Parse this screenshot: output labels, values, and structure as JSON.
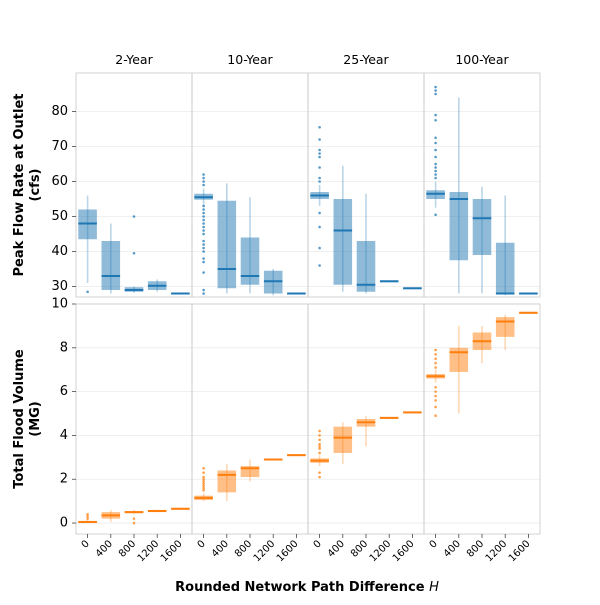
{
  "chart_data": {
    "type": "boxplot",
    "xlabel_prefix": "Rounded Network Path Difference ",
    "xlabel_var": "H",
    "columns": [
      "2-Year",
      "10-Year",
      "25-Year",
      "100-Year"
    ],
    "categories": [
      "0",
      "400",
      "800",
      "1200",
      "1600"
    ],
    "rows": [
      {
        "name": "peak_flow",
        "ylabel_line1": "Peak Flow Rate at Outlet",
        "ylabel_line2": "(cfs)",
        "ylim": [
          27,
          91
        ],
        "yticks": [
          30,
          40,
          50,
          60,
          70,
          80
        ],
        "color": "#1f77b4",
        "box_fill": "#1f77b4",
        "data": [
          [
            {
              "q1": 43.5,
              "median": 48,
              "q3": 52,
              "low": 31,
              "high": 56,
              "outliers": [
                28.5
              ]
            },
            {
              "q1": 29,
              "median": 33,
              "q3": 43,
              "low": 28,
              "high": 48,
              "outliers": []
            },
            {
              "q1": 28.5,
              "median": 29,
              "q3": 29.8,
              "low": 28.2,
              "high": 30,
              "outliers": [
                39.5,
                50
              ]
            },
            {
              "q1": 29,
              "median": 30.2,
              "q3": 31.5,
              "low": 28.5,
              "high": 32,
              "outliers": []
            },
            {
              "q1": 28,
              "median": 28,
              "q3": 28,
              "low": 28,
              "high": 28,
              "outliers": []
            }
          ],
          [
            {
              "q1": 54.8,
              "median": 55.5,
              "q3": 56.5,
              "low": 53,
              "high": 58,
              "outliers": [
                28,
                29,
                34,
                37,
                38,
                40,
                41,
                42,
                43,
                45,
                46,
                47,
                48,
                49,
                50,
                51,
                52,
                53,
                59,
                60,
                61,
                62
              ]
            },
            {
              "q1": 29.5,
              "median": 35,
              "q3": 54.5,
              "low": 28,
              "high": 59.5,
              "outliers": []
            },
            {
              "q1": 30.5,
              "median": 33,
              "q3": 44,
              "low": 28,
              "high": 55.5,
              "outliers": []
            },
            {
              "q1": 28,
              "median": 31.5,
              "q3": 34.5,
              "low": 27.5,
              "high": 35,
              "outliers": []
            },
            {
              "q1": 28,
              "median": 28,
              "q3": 28,
              "low": 28,
              "high": 28,
              "outliers": []
            }
          ],
          [
            {
              "q1": 55,
              "median": 56,
              "q3": 57,
              "low": 53,
              "high": 59,
              "outliers": [
                36,
                41,
                47,
                51,
                60,
                61,
                64,
                67,
                68,
                69,
                72,
                75.5
              ]
            },
            {
              "q1": 30.5,
              "median": 46,
              "q3": 55,
              "low": 28.5,
              "high": 64.5,
              "outliers": []
            },
            {
              "q1": 28.5,
              "median": 30.5,
              "q3": 43,
              "low": 28,
              "high": 56.5,
              "outliers": []
            },
            {
              "q1": 31.5,
              "median": 31.5,
              "q3": 31.5,
              "low": 31.5,
              "high": 31.5,
              "outliers": []
            },
            {
              "q1": 29.5,
              "median": 29.5,
              "q3": 29.5,
              "low": 29.5,
              "high": 29.5,
              "outliers": []
            }
          ],
          [
            {
              "q1": 55,
              "median": 56.5,
              "q3": 57.5,
              "low": 52.5,
              "high": 60,
              "outliers": [
                50.5,
                61,
                62,
                63,
                64,
                65,
                67,
                69,
                71,
                72.5,
                77.5,
                79,
                85,
                86,
                87
              ]
            },
            {
              "q1": 37.5,
              "median": 55,
              "q3": 57,
              "low": 28,
              "high": 84,
              "outliers": []
            },
            {
              "q1": 39,
              "median": 49.5,
              "q3": 55,
              "low": 28,
              "high": 58.5,
              "outliers": []
            },
            {
              "q1": 28,
              "median": 28,
              "q3": 42.5,
              "low": 27.5,
              "high": 56,
              "outliers": []
            },
            {
              "q1": 28,
              "median": 28,
              "q3": 28,
              "low": 28,
              "high": 28,
              "outliers": []
            }
          ]
        ]
      },
      {
        "name": "flood_volume",
        "ylabel_line1": "Total Flood Volume",
        "ylabel_line2": "(MG)",
        "ylim": [
          -0.5,
          10.0
        ],
        "yticks": [
          0,
          2,
          4,
          6,
          8,
          10
        ],
        "color": "#ff7f0e",
        "box_fill": "#ff7f0e",
        "data": [
          [
            {
              "q1": 0.0,
              "median": 0.05,
              "q3": 0.1,
              "low": 0.0,
              "high": 0.15,
              "outliers": [
                0.2,
                0.3,
                0.4
              ]
            },
            {
              "q1": 0.2,
              "median": 0.35,
              "q3": 0.5,
              "low": 0.05,
              "high": 0.6,
              "outliers": []
            },
            {
              "q1": 0.45,
              "median": 0.5,
              "q3": 0.55,
              "low": 0.4,
              "high": 0.6,
              "outliers": [
                0.0,
                0.2
              ]
            },
            {
              "q1": 0.5,
              "median": 0.55,
              "q3": 0.6,
              "low": 0.5,
              "high": 0.6,
              "outliers": []
            },
            {
              "q1": 0.65,
              "median": 0.65,
              "q3": 0.65,
              "low": 0.65,
              "high": 0.65,
              "outliers": []
            }
          ],
          [
            {
              "q1": 1.05,
              "median": 1.15,
              "q3": 1.25,
              "low": 1.0,
              "high": 1.35,
              "outliers": [
                1.5,
                1.6,
                1.7,
                1.8,
                1.9,
                2.0,
                2.1,
                2.3,
                2.5
              ]
            },
            {
              "q1": 1.4,
              "median": 2.2,
              "q3": 2.4,
              "low": 1.0,
              "high": 2.7,
              "outliers": []
            },
            {
              "q1": 2.1,
              "median": 2.5,
              "q3": 2.6,
              "low": 1.9,
              "high": 2.9,
              "outliers": []
            },
            {
              "q1": 2.9,
              "median": 2.9,
              "q3": 2.9,
              "low": 2.9,
              "high": 2.9,
              "outliers": []
            },
            {
              "q1": 3.1,
              "median": 3.1,
              "q3": 3.1,
              "low": 3.1,
              "high": 3.1,
              "outliers": []
            }
          ],
          [
            {
              "q1": 2.75,
              "median": 2.85,
              "q3": 2.95,
              "low": 2.6,
              "high": 3.1,
              "outliers": [
                2.1,
                2.3,
                3.2,
                3.4,
                3.5,
                3.6,
                3.8,
                4.0,
                4.2
              ]
            },
            {
              "q1": 3.2,
              "median": 3.9,
              "q3": 4.4,
              "low": 2.7,
              "high": 4.6,
              "outliers": []
            },
            {
              "q1": 4.4,
              "median": 4.6,
              "q3": 4.75,
              "low": 3.5,
              "high": 4.9,
              "outliers": []
            },
            {
              "q1": 4.8,
              "median": 4.8,
              "q3": 4.8,
              "low": 4.8,
              "high": 4.8,
              "outliers": []
            },
            {
              "q1": 5.05,
              "median": 5.05,
              "q3": 5.05,
              "low": 5.05,
              "high": 5.05,
              "outliers": []
            }
          ],
          [
            {
              "q1": 6.6,
              "median": 6.7,
              "q3": 6.8,
              "low": 6.4,
              "high": 7.0,
              "outliers": [
                4.9,
                5.3,
                5.6,
                5.8,
                6.0,
                6.2,
                7.1,
                7.3,
                7.5,
                7.7,
                7.9
              ]
            },
            {
              "q1": 6.9,
              "median": 7.8,
              "q3": 8.0,
              "low": 5.0,
              "high": 9.0,
              "outliers": []
            },
            {
              "q1": 7.9,
              "median": 8.3,
              "q3": 8.7,
              "low": 7.3,
              "high": 9.0,
              "outliers": []
            },
            {
              "q1": 8.5,
              "median": 9.2,
              "q3": 9.4,
              "low": 7.9,
              "high": 9.5,
              "outliers": []
            },
            {
              "q1": 9.6,
              "median": 9.6,
              "q3": 9.6,
              "low": 9.6,
              "high": 9.6,
              "outliers": []
            }
          ]
        ]
      }
    ]
  }
}
